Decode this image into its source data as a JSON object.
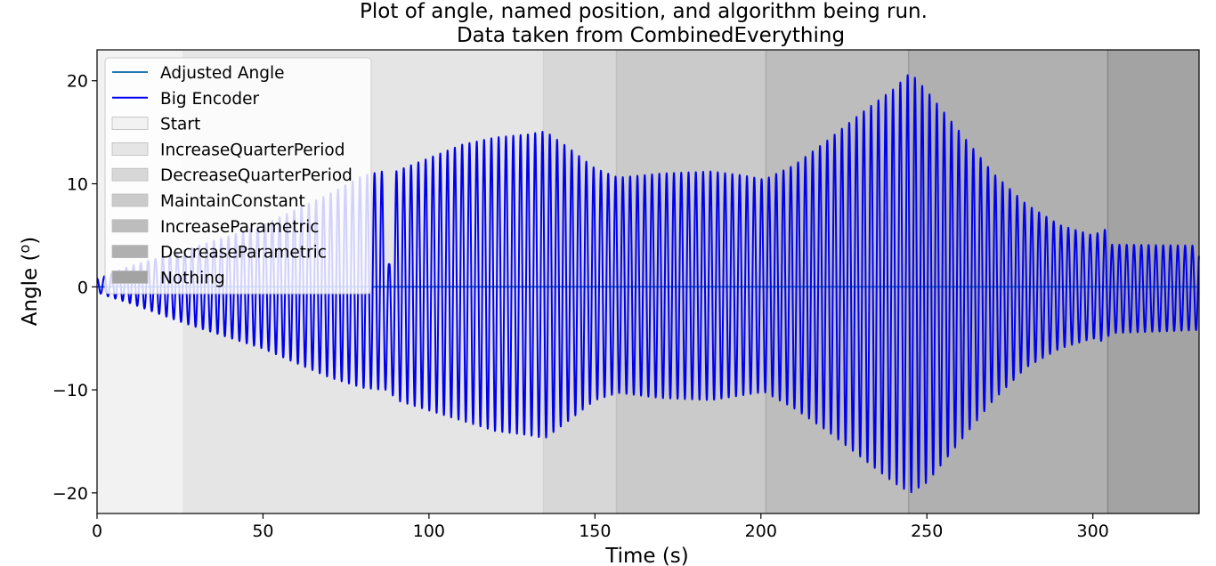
{
  "chart_data": {
    "type": "line",
    "title": [
      "Plot of angle, named position, and algorithm being run.",
      "Data taken from CombinedEverything"
    ],
    "xlabel": "Time (s)",
    "ylabel": "Angle (°)",
    "xlim": [
      0,
      332
    ],
    "ylim": [
      -22,
      23
    ],
    "x_ticks": [
      0,
      50,
      100,
      150,
      200,
      250,
      300
    ],
    "y_ticks": [
      -20,
      -10,
      0,
      10,
      20
    ],
    "x_tick_labels": [
      "0",
      "50",
      "100",
      "150",
      "200",
      "250",
      "300"
    ],
    "y_tick_labels": [
      "−20",
      "−10",
      "0",
      "10",
      "20"
    ],
    "legend_position": "top-left",
    "series": [
      {
        "name": "Adjusted Angle",
        "color": "#1f77b4",
        "envelope": [
          [
            0,
            0
          ],
          [
            332,
            0
          ]
        ]
      },
      {
        "name": "Big Encoder",
        "color": "#0000ee",
        "period": 2.2,
        "envelope_max": [
          [
            0,
            0.8
          ],
          [
            2,
            1.0
          ],
          [
            10,
            2.0
          ],
          [
            26,
            3.5
          ],
          [
            50,
            6
          ],
          [
            70,
            9
          ],
          [
            80,
            10.8
          ],
          [
            86,
            11.2
          ],
          [
            88,
            2
          ],
          [
            90,
            11.2
          ],
          [
            100,
            12.5
          ],
          [
            110,
            13.8
          ],
          [
            120,
            14.5
          ],
          [
            130,
            14.8
          ],
          [
            135,
            15.1
          ],
          [
            142,
            13.5
          ],
          [
            150,
            11.5
          ],
          [
            157,
            10.6
          ],
          [
            170,
            11.0
          ],
          [
            185,
            11.2
          ],
          [
            195,
            10.8
          ],
          [
            201,
            10.4
          ],
          [
            210,
            11.8
          ],
          [
            220,
            14.2
          ],
          [
            230,
            16.8
          ],
          [
            240,
            19.2
          ],
          [
            245,
            20.8
          ],
          [
            250,
            19.0
          ],
          [
            260,
            15.0
          ],
          [
            270,
            11.0
          ],
          [
            280,
            8.0
          ],
          [
            290,
            6.0
          ],
          [
            300,
            5.0
          ],
          [
            304,
            5.6
          ],
          [
            305,
            4.1
          ],
          [
            332,
            4.0
          ]
        ],
        "envelope_min": [
          [
            0,
            -0.5
          ],
          [
            2,
            -0.8
          ],
          [
            10,
            -1.6
          ],
          [
            26,
            -3.5
          ],
          [
            50,
            -6
          ],
          [
            70,
            -8.8
          ],
          [
            80,
            -9.8
          ],
          [
            86,
            -10.0
          ],
          [
            88,
            -10.0
          ],
          [
            90,
            -11.0
          ],
          [
            100,
            -12.0
          ],
          [
            110,
            -13.0
          ],
          [
            120,
            -14.0
          ],
          [
            130,
            -14.4
          ],
          [
            135,
            -14.7
          ],
          [
            142,
            -13.0
          ],
          [
            150,
            -11.0
          ],
          [
            157,
            -10.3
          ],
          [
            170,
            -10.8
          ],
          [
            185,
            -11.0
          ],
          [
            195,
            -10.5
          ],
          [
            201,
            -10.2
          ],
          [
            210,
            -11.8
          ],
          [
            220,
            -14.0
          ],
          [
            230,
            -16.5
          ],
          [
            240,
            -19.0
          ],
          [
            245,
            -20.0
          ],
          [
            250,
            -19.0
          ],
          [
            260,
            -15.0
          ],
          [
            270,
            -11.0
          ],
          [
            280,
            -7.8
          ],
          [
            290,
            -6.0
          ],
          [
            300,
            -5.0
          ],
          [
            304,
            -5.4
          ],
          [
            305,
            -4.5
          ],
          [
            332,
            -4.2
          ]
        ]
      }
    ],
    "regions": [
      {
        "name": "Start",
        "start": 0,
        "end": 26,
        "color": "#f2f2f2"
      },
      {
        "name": "IncreaseQuarterPeriod",
        "start": 26,
        "end": 134.5,
        "color": "#e5e5e5"
      },
      {
        "name": "DecreaseQuarterPeriod",
        "start": 134.5,
        "end": 156.5,
        "color": "#d7d7d7"
      },
      {
        "name": "MaintainConstant",
        "start": 156.5,
        "end": 201.5,
        "color": "#cacaca"
      },
      {
        "name": "IncreaseParametric",
        "start": 201.5,
        "end": 244.5,
        "color": "#bdbdbd"
      },
      {
        "name": "DecreaseParametric",
        "start": 244.5,
        "end": 304.5,
        "color": "#b0b0b0"
      },
      {
        "name": "Nothing",
        "start": 304.5,
        "end": 332,
        "color": "#a3a3a3"
      }
    ],
    "region_edge_colors": [
      "#e5e5e5",
      "#d2d2d2",
      "#c0c0c0",
      "#adadad",
      "#9a9a9a",
      "#888888"
    ]
  }
}
